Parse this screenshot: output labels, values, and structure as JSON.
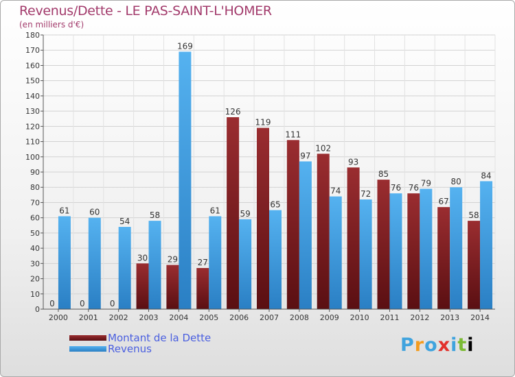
{
  "header": {
    "title": "Revenus/Dette - LE PAS-SAINT-L'HOMER",
    "subtitle": "(en milliers d'€)"
  },
  "logo": {
    "letters": [
      "P",
      "r",
      "o",
      "x",
      "i",
      "t",
      "i"
    ]
  },
  "chart_data": {
    "type": "bar",
    "categories": [
      "2000",
      "2001",
      "2002",
      "2003",
      "2004",
      "2005",
      "2006",
      "2007",
      "2008",
      "2009",
      "2010",
      "2011",
      "2012",
      "2013",
      "2014"
    ],
    "series": [
      {
        "name": "Montant de la Dette",
        "color": "#7a1f22",
        "values": [
          0,
          0,
          0,
          30,
          29,
          27,
          126,
          119,
          111,
          102,
          93,
          85,
          76,
          67,
          58
        ]
      },
      {
        "name": "Revenus",
        "color": "#3f9ee3",
        "values": [
          61,
          60,
          54,
          58,
          169,
          61,
          59,
          65,
          97,
          74,
          72,
          76,
          79,
          80,
          84
        ]
      }
    ],
    "ylim": [
      0,
      180
    ],
    "yticks": [
      0,
      10,
      20,
      30,
      40,
      50,
      60,
      70,
      80,
      90,
      100,
      110,
      120,
      130,
      140,
      150,
      160,
      170,
      180
    ],
    "grid": true,
    "legend_position": "bottom-left"
  }
}
